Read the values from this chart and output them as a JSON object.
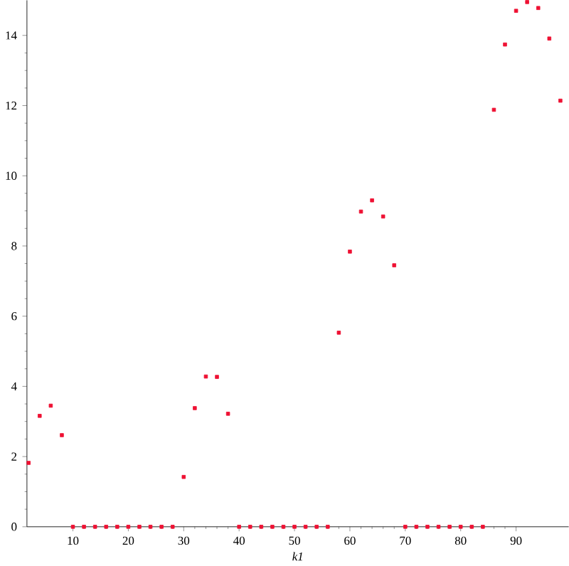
{
  "chart_data": {
    "type": "scatter",
    "xlabel": "k1",
    "marker": "square",
    "x": [
      2,
      4,
      6,
      8,
      10,
      12,
      14,
      16,
      18,
      20,
      22,
      24,
      26,
      28,
      30,
      32,
      34,
      36,
      38,
      40,
      42,
      44,
      46,
      48,
      50,
      52,
      54,
      56,
      58,
      60,
      62,
      64,
      66,
      68,
      70,
      72,
      74,
      76,
      78,
      80,
      82,
      84,
      86,
      88,
      90,
      92,
      94,
      96,
      98
    ],
    "series": [
      {
        "color": "#ee1133",
        "values": [
          1.82,
          3.16,
          3.45,
          2.61,
          0,
          0,
          0,
          0,
          0,
          0,
          0,
          0,
          0,
          0,
          1.42,
          3.38,
          4.28,
          4.27,
          3.22,
          0,
          0,
          0,
          0,
          0,
          0,
          0,
          0,
          0,
          5.53,
          7.84,
          8.98,
          9.3,
          8.84,
          7.45,
          0,
          0,
          0,
          0,
          0,
          0,
          0,
          0,
          11.88,
          13.74,
          14.7,
          14.95,
          14.78,
          13.91,
          12.14
        ]
      }
    ],
    "xlim": [
      1.7,
      99.5
    ],
    "ylim": [
      0,
      15
    ],
    "xticks": [
      10,
      20,
      30,
      40,
      50,
      60,
      70,
      80,
      90
    ],
    "yticks": [
      0,
      2,
      4,
      6,
      8,
      10,
      12,
      14
    ]
  }
}
